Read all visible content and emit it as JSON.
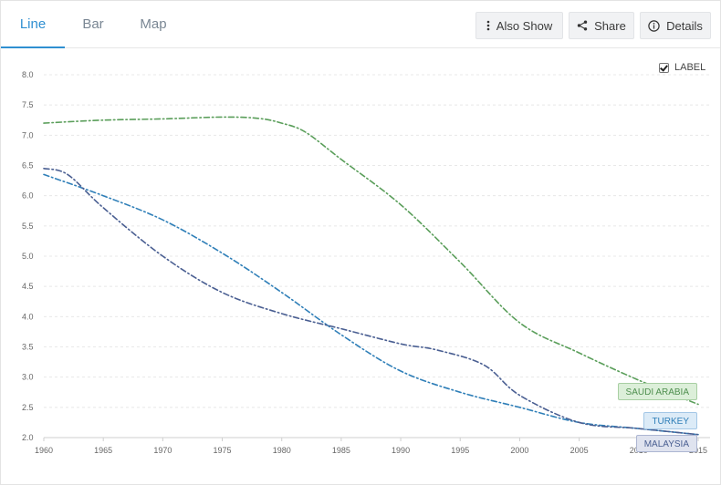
{
  "tabs": [
    {
      "label": "Line",
      "active": true
    },
    {
      "label": "Bar",
      "active": false
    },
    {
      "label": "Map",
      "active": false
    }
  ],
  "toolbar": {
    "also_show_label": "Also Show",
    "share_label": "Share",
    "details_label": "Details"
  },
  "label_toggle": {
    "label": "LABEL",
    "checked": true
  },
  "icons": {
    "also_show": "kebab-vertical-icon",
    "share": "share-icon",
    "details": "info-circle-icon"
  },
  "colors": {
    "accent": "#2f8fd1",
    "grid": "#e8e8e8"
  },
  "chart_data": {
    "type": "line",
    "title": "",
    "xlabel": "",
    "ylabel": "",
    "xlim": [
      1960,
      2016
    ],
    "ylim": [
      2.0,
      8.0
    ],
    "x_ticks": [
      "1960",
      "1965",
      "1970",
      "1975",
      "1980",
      "1985",
      "1990",
      "1995",
      "2000",
      "2005",
      "2010",
      "2015"
    ],
    "y_ticks": [
      "8.0",
      "7.5",
      "7.0",
      "6.5",
      "6.0",
      "5.5",
      "5.0",
      "4.5",
      "4.0",
      "3.5",
      "3.0",
      "2.5",
      "2.0"
    ],
    "grid": true,
    "line_style": "dash-dot",
    "series": [
      {
        "name": "SAUDI ARABIA",
        "color": "#5a9e5a",
        "tag_bg": "#dcefd9",
        "tag_border": "#a8cfa3",
        "tag_text": "#4f8f4f",
        "x": [
          1960,
          1965,
          1970,
          1975,
          1978,
          1980,
          1982,
          1985,
          1990,
          1995,
          2000,
          2005,
          2010,
          2015
        ],
        "y": [
          7.2,
          7.25,
          7.27,
          7.3,
          7.28,
          7.2,
          7.05,
          6.6,
          5.85,
          4.9,
          3.9,
          3.4,
          2.95,
          2.55
        ]
      },
      {
        "name": "TURKEY",
        "color": "#2f7fb8",
        "tag_bg": "#dcebf7",
        "tag_border": "#a3c7e6",
        "tag_text": "#2f7fb8",
        "x": [
          1960,
          1965,
          1970,
          1975,
          1980,
          1985,
          1990,
          1995,
          2000,
          2005,
          2010,
          2015
        ],
        "y": [
          6.35,
          6.0,
          5.6,
          5.05,
          4.4,
          3.7,
          3.1,
          2.75,
          2.5,
          2.25,
          2.15,
          2.05
        ]
      },
      {
        "name": "MALAYSIA",
        "color": "#4a5f92",
        "tag_bg": "#dfe3ef",
        "tag_border": "#adb6d2",
        "tag_text": "#4a5f92",
        "x": [
          1960,
          1962,
          1965,
          1970,
          1975,
          1980,
          1985,
          1990,
          1993,
          1997,
          2000,
          2005,
          2010,
          2015
        ],
        "y": [
          6.45,
          6.35,
          5.8,
          5.0,
          4.4,
          4.05,
          3.8,
          3.55,
          3.45,
          3.2,
          2.7,
          2.25,
          2.15,
          2.05
        ]
      }
    ]
  }
}
